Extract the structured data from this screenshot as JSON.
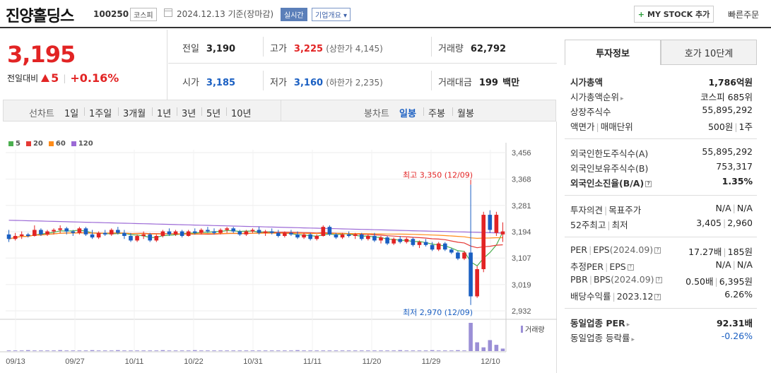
{
  "header": {
    "name": "진양홀딩스",
    "code": "100250",
    "market": "코스피",
    "date_text": "2024.12.13 기준(장마감)",
    "realtime": "실시간",
    "overview": "기업개요",
    "overview_arrow": "▾",
    "mystock": "MY STOCK 추가",
    "mystock_plus": "+",
    "quick_order": "빠른주문"
  },
  "price": {
    "current": "3,195",
    "change_label": "전일대비",
    "change": "5",
    "change_pct": "+0.16%"
  },
  "stats": {
    "prev_label": "전일",
    "prev": "3,190",
    "high_label": "고가",
    "high": "3,225",
    "high_sub": "(상한가 4,145)",
    "volume_label": "거래량",
    "volume": "62,792",
    "open_label": "시가",
    "open": "3,185",
    "low_label": "저가",
    "low": "3,160",
    "low_sub": "(하한가 2,235)",
    "amount_label": "거래대금",
    "amount": "199",
    "amount_unit": "백만"
  },
  "periods": {
    "line_label": "선차트",
    "line_items": [
      "1일",
      "1주일",
      "3개월",
      "1년",
      "3년",
      "5년",
      "10년"
    ],
    "candle_label": "봉차트",
    "candle_items": [
      "일봉",
      "주봉",
      "월봉"
    ],
    "candle_active": "일봉"
  },
  "colors": {
    "up": "#e22424",
    "down": "#1a5fc2",
    "ma5": "#4caf50",
    "ma20": "#e53935",
    "ma60": "#ff8c1a",
    "ma120": "#9c6ad6",
    "volume": "#9b8fd6"
  },
  "side": {
    "tab_active": "투자정보",
    "tab_other": "호가 10단계",
    "rows": {
      "mcap_label": "시가총액",
      "mcap": "1,786억원",
      "mcap_rank_label": "시가총액순위",
      "mcap_rank": "코스피 685위",
      "shares_label": "상장주식수",
      "shares": "55,895,292",
      "par_label": "액면가",
      "trade_unit_label": "매매단위",
      "par": "500원",
      "trade_unit": "1주",
      "foreign_limit_label": "외국인한도주식수(A)",
      "foreign_limit": "55,895,292",
      "foreign_hold_label": "외국인보유주식수(B)",
      "foreign_hold": "753,317",
      "foreign_ratio_label": "외국인소진율(B/A)",
      "foreign_ratio": "1.35%",
      "opinion_label": "투자의견",
      "target_label": "목표주가",
      "opinion": "N/A",
      "target": "N/A",
      "w52_high_label": "52주최고",
      "w52_low_label": "최저",
      "w52_high": "3,405",
      "w52_low": "2,960",
      "per_label": "PER",
      "eps_label": "EPS",
      "per_eps_period": "(2024.09)",
      "per": "17.27배",
      "eps": "185원",
      "est_per_label": "추정PER",
      "est_eps_label": "EPS",
      "est_per": "N/A",
      "est_eps": "N/A",
      "pbr_label": "PBR",
      "bps_label": "BPS",
      "pbr_bps_period": "(2024.09)",
      "pbr": "0.50배",
      "bps": "6,395원",
      "div_label": "배당수익률",
      "div_period": "2023.12",
      "div": "6.26%",
      "peer_per_label": "동일업종 PER",
      "peer_per": "92.31배",
      "peer_chg_label": "동일업종 등락률",
      "peer_chg": "-0.26%"
    }
  },
  "chart_data": {
    "type": "candlestick",
    "ma_legend": [
      "5",
      "20",
      "60",
      "120"
    ],
    "y_ticks": [
      3456,
      3368,
      3281,
      3194,
      3107,
      3019,
      2932
    ],
    "ylim": [
      2932,
      3456
    ],
    "x_tick_labels": [
      "09/13",
      "09/27",
      "10/11",
      "10/22",
      "10/31",
      "11/11",
      "11/20",
      "11/29",
      "12/10"
    ],
    "max_annotation": "최고 3,350 (12/09)",
    "min_annotation": "최저 2,970 (12/09)",
    "volume_label": "거래량",
    "candles": [
      [
        3185,
        3200,
        3160,
        3170
      ],
      [
        3170,
        3190,
        3165,
        3180
      ],
      [
        3180,
        3195,
        3170,
        3185
      ],
      [
        3185,
        3190,
        3175,
        3180
      ],
      [
        3180,
        3215,
        3178,
        3200
      ],
      [
        3200,
        3205,
        3180,
        3185
      ],
      [
        3185,
        3200,
        3180,
        3195
      ],
      [
        3195,
        3205,
        3185,
        3200
      ],
      [
        3200,
        3215,
        3190,
        3205
      ],
      [
        3205,
        3210,
        3185,
        3195
      ],
      [
        3195,
        3200,
        3180,
        3190
      ],
      [
        3190,
        3210,
        3185,
        3205
      ],
      [
        3205,
        3210,
        3180,
        3185
      ],
      [
        3185,
        3200,
        3170,
        3175
      ],
      [
        3175,
        3195,
        3170,
        3190
      ],
      [
        3190,
        3200,
        3180,
        3185
      ],
      [
        3185,
        3205,
        3180,
        3200
      ],
      [
        3200,
        3210,
        3185,
        3190
      ],
      [
        3190,
        3200,
        3170,
        3180
      ],
      [
        3180,
        3190,
        3160,
        3165
      ],
      [
        3165,
        3185,
        3160,
        3180
      ],
      [
        3180,
        3195,
        3170,
        3185
      ],
      [
        3185,
        3190,
        3160,
        3165
      ],
      [
        3165,
        3185,
        3160,
        3180
      ],
      [
        3180,
        3200,
        3175,
        3195
      ],
      [
        3195,
        3205,
        3180,
        3185
      ],
      [
        3185,
        3200,
        3180,
        3195
      ],
      [
        3195,
        3200,
        3175,
        3180
      ],
      [
        3180,
        3200,
        3178,
        3195
      ],
      [
        3195,
        3205,
        3185,
        3190
      ],
      [
        3190,
        3205,
        3185,
        3200
      ],
      [
        3200,
        3210,
        3190,
        3195
      ],
      [
        3195,
        3205,
        3185,
        3190
      ],
      [
        3190,
        3205,
        3185,
        3200
      ],
      [
        3200,
        3210,
        3190,
        3205
      ],
      [
        3205,
        3210,
        3190,
        3195
      ],
      [
        3195,
        3200,
        3180,
        3185
      ],
      [
        3185,
        3200,
        3180,
        3195
      ],
      [
        3195,
        3205,
        3190,
        3200
      ],
      [
        3200,
        3210,
        3185,
        3190
      ],
      [
        3190,
        3200,
        3180,
        3195
      ],
      [
        3195,
        3205,
        3185,
        3190
      ],
      [
        3190,
        3200,
        3175,
        3180
      ],
      [
        3180,
        3195,
        3175,
        3190
      ],
      [
        3190,
        3200,
        3180,
        3185
      ],
      [
        3185,
        3195,
        3170,
        3175
      ],
      [
        3175,
        3190,
        3170,
        3185
      ],
      [
        3185,
        3190,
        3165,
        3170
      ],
      [
        3170,
        3185,
        3165,
        3180
      ],
      [
        3180,
        3215,
        3178,
        3210
      ],
      [
        3210,
        3215,
        3180,
        3185
      ],
      [
        3185,
        3190,
        3170,
        3175
      ],
      [
        3175,
        3190,
        3170,
        3185
      ],
      [
        3185,
        3195,
        3175,
        3180
      ],
      [
        3180,
        3190,
        3170,
        3185
      ],
      [
        3185,
        3190,
        3165,
        3170
      ],
      [
        3170,
        3185,
        3165,
        3180
      ],
      [
        3180,
        3190,
        3160,
        3165
      ],
      [
        3165,
        3180,
        3155,
        3175
      ],
      [
        3175,
        3180,
        3150,
        3155
      ],
      [
        3155,
        3175,
        3150,
        3170
      ],
      [
        3170,
        3180,
        3155,
        3160
      ],
      [
        3160,
        3175,
        3155,
        3170
      ],
      [
        3170,
        3175,
        3145,
        3150
      ],
      [
        3150,
        3165,
        3140,
        3160
      ],
      [
        3160,
        3170,
        3145,
        3150
      ],
      [
        3150,
        3160,
        3130,
        3135
      ],
      [
        3135,
        3160,
        3130,
        3155
      ],
      [
        3155,
        3160,
        3130,
        3135
      ],
      [
        3135,
        3140,
        3120,
        3125
      ],
      [
        3125,
        3130,
        3100,
        3105
      ],
      [
        3105,
        3130,
        3100,
        3125
      ],
      [
        3125,
        3350,
        2970,
        2980
      ],
      [
        2980,
        3080,
        2975,
        3070
      ],
      [
        3070,
        3260,
        3060,
        3250
      ],
      [
        3250,
        3265,
        3190,
        3200
      ],
      [
        3190,
        3260,
        3180,
        3250
      ],
      [
        3185,
        3225,
        3160,
        3195
      ]
    ],
    "volumes": [
      2,
      2,
      2,
      3,
      2,
      2,
      2,
      2,
      3,
      2,
      2,
      2,
      2,
      3,
      2,
      2,
      2,
      3,
      2,
      2,
      2,
      2,
      2,
      2,
      3,
      2,
      2,
      2,
      2,
      3,
      2,
      2,
      2,
      2,
      2,
      2,
      2,
      2,
      2,
      2,
      2,
      2,
      2,
      2,
      2,
      3,
      2,
      2,
      2,
      2,
      2,
      2,
      2,
      2,
      2,
      2,
      2,
      2,
      2,
      2,
      2,
      3,
      2,
      2,
      2,
      2,
      3,
      2,
      2,
      2,
      3,
      2,
      90,
      28,
      12,
      35,
      20,
      8
    ]
  }
}
